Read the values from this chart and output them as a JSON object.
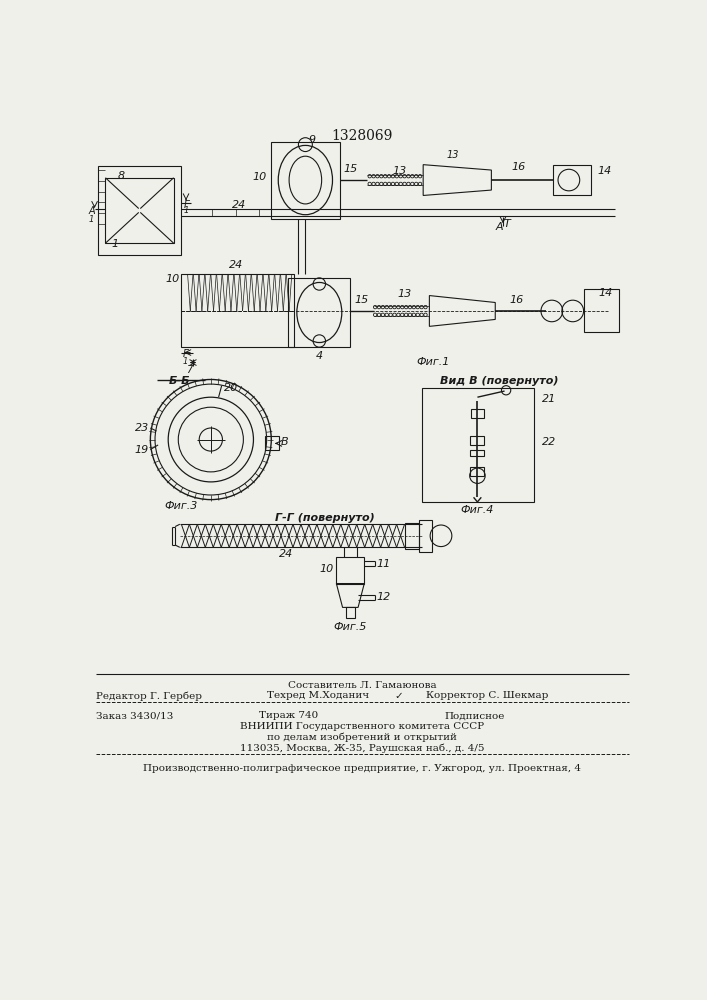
{
  "patent_number": "1328069",
  "bg_color": "#f0f0eb",
  "line_color": "#1a1a1a",
  "sestavitel": "Составитель Л. Гамаюнова",
  "redaktor": "Редактор Г. Гербер",
  "tehred": "Техред М.Ходанич",
  "korrektor": "Корректор С. Шекмар",
  "zakaz": "Заказ 3430/13",
  "tirazh": "Тираж 740",
  "podpisnoe": "Подписное",
  "vnipi": "ВНИИПИ Государственного комитета СССР",
  "po_delam": "по делам изобретений и открытий",
  "address": "113035, Москва, Ж-35, Раушская наб., д. 4/5",
  "proizvod": "Производственно-полиграфическое предприятие, г. Ужгород, ул. Проектная, 4",
  "fig1_label": "Фиг.1",
  "fig3_label": "Фиг.3",
  "fig4_label": "Фиг.4",
  "fig5_label": "Фиг.5",
  "bb_label": "Б-Б",
  "gg_label": "Г-Г (повернуто)",
  "vid_b_label": "Вид В (повернуто)"
}
